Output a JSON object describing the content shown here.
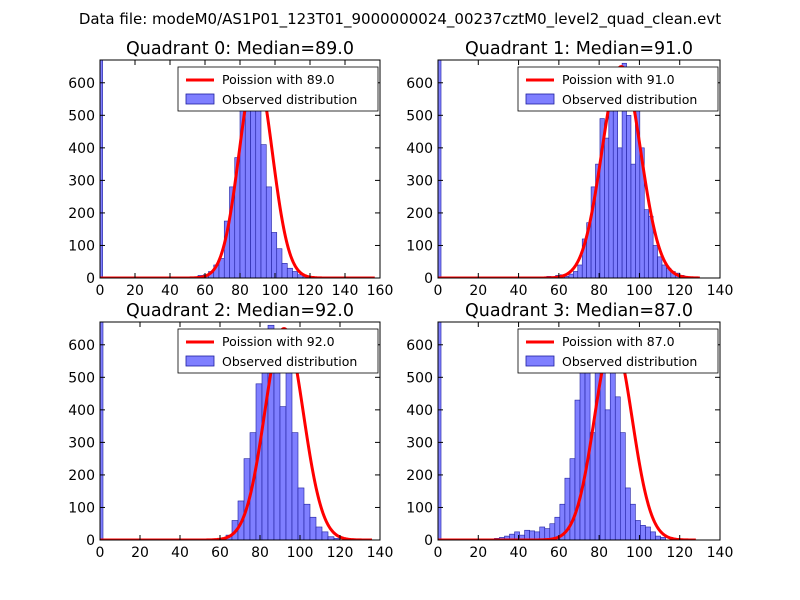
{
  "figure_title": "Data file: modeM0/AS1P01_123T01_9000000024_00237cztM0_level2_quad_clean.evt",
  "colors": {
    "bar_fill": "#7f7fff",
    "bar_edge": "#1f1fa0",
    "poisson_line": "#ff0000"
  },
  "chart_data": [
    {
      "type": "bar",
      "title": "Quadrant 0: Median=89.0",
      "legend": {
        "line": "Poission with 89.0",
        "bars": "Observed distribution",
        "placement": "top-right"
      },
      "xlim": [
        0,
        160
      ],
      "ylim": [
        0,
        670
      ],
      "xticks": [
        0,
        20,
        40,
        60,
        80,
        100,
        120,
        140,
        160
      ],
      "yticks": [
        0,
        100,
        200,
        300,
        400,
        500,
        600
      ],
      "zero_bin": {
        "x0": 0,
        "x1": 1.5,
        "value": 670
      },
      "bins": {
        "start": 53,
        "width": 3,
        "values": [
          3,
          8,
          10,
          20,
          40,
          60,
          175,
          280,
          370,
          550,
          600,
          580,
          520,
          410,
          280,
          140,
          90,
          45,
          30,
          20,
          10,
          5
        ]
      },
      "poisson": {
        "mean": 89.0,
        "peak": 640,
        "x_range": [
          0,
          157
        ]
      }
    },
    {
      "type": "bar",
      "title": "Quadrant 1: Median=91.0",
      "legend": {
        "line": "Poission with 91.0",
        "bars": "Observed distribution",
        "placement": "top-right"
      },
      "xlim": [
        0,
        140
      ],
      "ylim": [
        0,
        670
      ],
      "xticks": [
        0,
        20,
        40,
        60,
        80,
        100,
        120,
        140
      ],
      "yticks": [
        0,
        100,
        200,
        300,
        400,
        500,
        600
      ],
      "zero_bin": {
        "x0": 0,
        "x1": 1.5,
        "value": 670
      },
      "bins": {
        "start": 54,
        "width": 2.2,
        "values": [
          5,
          3,
          8,
          10,
          5,
          12,
          20,
          40,
          120,
          170,
          280,
          350,
          490,
          430,
          560,
          620,
          400,
          660,
          500,
          350,
          550,
          400,
          210,
          190,
          100,
          65,
          40,
          30,
          20,
          15,
          8,
          3
        ]
      },
      "poisson": {
        "mean": 91.0,
        "peak": 650,
        "x_range": [
          0,
          130
        ]
      }
    },
    {
      "type": "bar",
      "title": "Quadrant 2: Median=92.0",
      "legend": {
        "line": "Poission with 92.0",
        "bars": "Observed distribution",
        "placement": "top-right"
      },
      "xlim": [
        0,
        140
      ],
      "ylim": [
        0,
        670
      ],
      "xticks": [
        0,
        20,
        40,
        60,
        80,
        100,
        120,
        140
      ],
      "yticks": [
        0,
        100,
        200,
        300,
        400,
        500,
        600
      ],
      "zero_bin": {
        "x0": 0,
        "x1": 1.5,
        "value": 670
      },
      "bins": {
        "start": 60,
        "width": 3,
        "values": [
          5,
          15,
          60,
          120,
          250,
          330,
          480,
          620,
          660,
          540,
          410,
          590,
          330,
          160,
          110,
          70,
          40,
          25,
          10,
          5
        ]
      },
      "poisson": {
        "mean": 92.0,
        "peak": 650,
        "x_range": [
          0,
          136
        ]
      }
    },
    {
      "type": "bar",
      "title": "Quadrant 3: Median=87.0",
      "legend": {
        "line": "Poission with 87.0",
        "bars": "Observed distribution",
        "placement": "top-right"
      },
      "xlim": [
        0,
        140
      ],
      "ylim": [
        0,
        670
      ],
      "xticks": [
        0,
        20,
        40,
        60,
        80,
        100,
        120,
        140
      ],
      "yticks": [
        0,
        100,
        200,
        300,
        400,
        500,
        600
      ],
      "zero_bin": {
        "x0": 0,
        "x1": 1.5,
        "value": 670
      },
      "bins": {
        "start": 28,
        "width": 2.5,
        "values": [
          5,
          8,
          12,
          18,
          25,
          15,
          30,
          28,
          25,
          40,
          35,
          50,
          70,
          110,
          190,
          250,
          430,
          520,
          580,
          330,
          570,
          620,
          400,
          570,
          440,
          330,
          160,
          110,
          60,
          45,
          40,
          25,
          12,
          8
        ]
      },
      "poisson": {
        "mean": 87.0,
        "peak": 620,
        "x_range": [
          0,
          128
        ]
      }
    }
  ]
}
